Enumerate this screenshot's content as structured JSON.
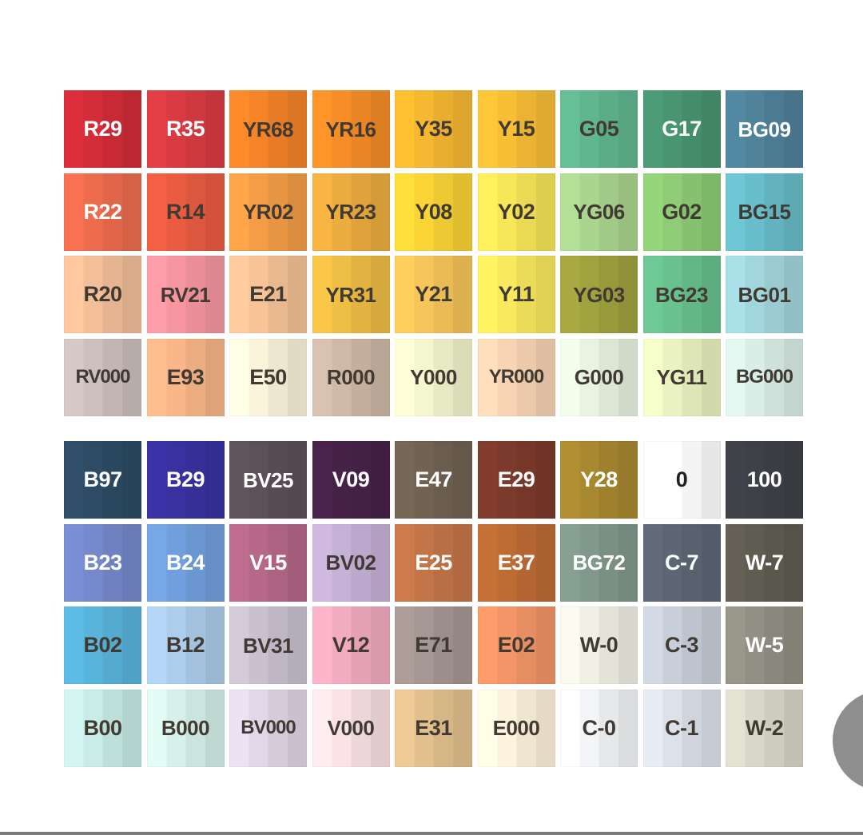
{
  "page": {
    "background": "#ffffff",
    "bottom_line_color": "#7b7b7b"
  },
  "carousel": {
    "next_button_color": "#8e8e8e"
  },
  "chart_data": {
    "type": "table",
    "title": "Marker color swatch chart",
    "columns": 9,
    "text_colors": {
      "light": "#ffffff",
      "dark": "#403a33",
      "black": "#222222"
    },
    "blocks": [
      {
        "name": "warm-greens-block",
        "rows": [
          [
            {
              "label": "R29",
              "color": "#ce2c37",
              "text": "light"
            },
            {
              "label": "R35",
              "color": "#d53a41",
              "text": "light"
            },
            {
              "label": "YR68",
              "color": "#f08127",
              "text": "dark"
            },
            {
              "label": "YR16",
              "color": "#f18a25",
              "text": "dark"
            },
            {
              "label": "Y35",
              "color": "#f1b42f",
              "text": "dark"
            },
            {
              "label": "Y15",
              "color": "#f3ba33",
              "text": "dark"
            },
            {
              "label": "G05",
              "color": "#5eb38c",
              "text": "dark"
            },
            {
              "label": "G17",
              "color": "#47926d",
              "text": "light"
            },
            {
              "label": "BG09",
              "color": "#4e7f97",
              "text": "light"
            }
          ],
          [
            {
              "label": "R22",
              "color": "#e96a4c",
              "text": "light"
            },
            {
              "label": "R14",
              "color": "#e55a40",
              "text": "dark"
            },
            {
              "label": "YR02",
              "color": "#ef9a45",
              "text": "dark"
            },
            {
              "label": "YR23",
              "color": "#e8a93e",
              "text": "dark"
            },
            {
              "label": "Y08",
              "color": "#f6d035",
              "text": "dark"
            },
            {
              "label": "Y02",
              "color": "#f2e156",
              "text": "dark"
            },
            {
              "label": "YG06",
              "color": "#a7d18c",
              "text": "dark"
            },
            {
              "label": "G02",
              "color": "#8bc873",
              "text": "dark"
            },
            {
              "label": "BG15",
              "color": "#66bac6",
              "text": "dark"
            }
          ],
          [
            {
              "label": "R20",
              "color": "#eebb95",
              "text": "dark"
            },
            {
              "label": "RV21",
              "color": "#f2939d",
              "text": "dark"
            },
            {
              "label": "E21",
              "color": "#f2bf94",
              "text": "dark"
            },
            {
              "label": "YR31",
              "color": "#eaba43",
              "text": "dark"
            },
            {
              "label": "Y21",
              "color": "#f2c157",
              "text": "dark"
            },
            {
              "label": "Y11",
              "color": "#f3e45c",
              "text": "dark"
            },
            {
              "label": "YG03",
              "color": "#9d9f3d",
              "text": "dark"
            },
            {
              "label": "BG23",
              "color": "#67bd8b",
              "text": "dark"
            },
            {
              "label": "BG01",
              "color": "#9fd2d9",
              "text": "dark"
            }
          ],
          [
            {
              "label": "RV000",
              "color": "#c9bcba",
              "text": "dark"
            },
            {
              "label": "E93",
              "color": "#f4b285",
              "text": "dark"
            },
            {
              "label": "E50",
              "color": "#f6efd7",
              "text": "dark"
            },
            {
              "label": "R000",
              "color": "#cbb5a5",
              "text": "dark"
            },
            {
              "label": "Y000",
              "color": "#eff1c9",
              "text": "dark"
            },
            {
              "label": "YR000",
              "color": "#f4d0b0",
              "text": "dark"
            },
            {
              "label": "G000",
              "color": "#e3eedd",
              "text": "dark"
            },
            {
              "label": "YG11",
              "color": "#e6edbd",
              "text": "dark"
            },
            {
              "label": "BG000",
              "color": "#d6e9e3",
              "text": "dark"
            }
          ]
        ]
      },
      {
        "name": "blues-grays-block",
        "rows": [
          [
            {
              "label": "B97",
              "color": "#2c4a63",
              "text": "light"
            },
            {
              "label": "B29",
              "color": "#37319e",
              "text": "light"
            },
            {
              "label": "BV25",
              "color": "#5b4f57",
              "text": "light"
            },
            {
              "label": "V09",
              "color": "#452147",
              "text": "light"
            },
            {
              "label": "E47",
              "color": "#6f6050",
              "text": "light"
            },
            {
              "label": "E29",
              "color": "#7a392b",
              "text": "light"
            },
            {
              "label": "Y28",
              "color": "#a5862f",
              "text": "light"
            },
            {
              "label": "0",
              "color": "#fdfdfd",
              "text": "black"
            },
            {
              "label": "100",
              "color": "#3c3f45",
              "text": "light"
            }
          ],
          [
            {
              "label": "B23",
              "color": "#7386c8",
              "text": "light"
            },
            {
              "label": "B24",
              "color": "#6f9cd9",
              "text": "light"
            },
            {
              "label": "V15",
              "color": "#b26685",
              "text": "light"
            },
            {
              "label": "BV02",
              "color": "#c2aed3",
              "text": "dark"
            },
            {
              "label": "E25",
              "color": "#c07347",
              "text": "light"
            },
            {
              "label": "E37",
              "color": "#b96a33",
              "text": "light"
            },
            {
              "label": "BG72",
              "color": "#7e9687",
              "text": "light"
            },
            {
              "label": "C-7",
              "color": "#5b6472",
              "text": "light"
            },
            {
              "label": "W-7",
              "color": "#5d5a50",
              "text": "light"
            }
          ],
          [
            {
              "label": "B02",
              "color": "#57b0d7",
              "text": "dark"
            },
            {
              "label": "B12",
              "color": "#a9c9e7",
              "text": "dark"
            },
            {
              "label": "BV31",
              "color": "#c5bdcc",
              "text": "dark"
            },
            {
              "label": "V12",
              "color": "#eda8bc",
              "text": "dark"
            },
            {
              "label": "E71",
              "color": "#a29490",
              "text": "dark"
            },
            {
              "label": "E02",
              "color": "#ee9264",
              "text": "dark"
            },
            {
              "label": "W-0",
              "color": "#ebebe0",
              "text": "dark"
            },
            {
              "label": "C-3",
              "color": "#c5cbd6",
              "text": "dark"
            },
            {
              "label": "W-5",
              "color": "#8f8c81",
              "text": "light"
            }
          ],
          [
            {
              "label": "B00",
              "color": "#c4e7e2",
              "text": "dark"
            },
            {
              "label": "B000",
              "color": "#d2ece5",
              "text": "dark"
            },
            {
              "label": "BV000",
              "color": "#dcd3e3",
              "text": "dark"
            },
            {
              "label": "V000",
              "color": "#f6dee1",
              "text": "dark"
            },
            {
              "label": "E31",
              "color": "#dfbd8b",
              "text": "dark"
            },
            {
              "label": "E000",
              "color": "#f9eed8",
              "text": "dark"
            },
            {
              "label": "C-0",
              "color": "#eef0f3",
              "text": "dark"
            },
            {
              "label": "C-1",
              "color": "#d8dde5",
              "text": "dark"
            },
            {
              "label": "W-2",
              "color": "#d5d3c5",
              "text": "dark"
            }
          ]
        ]
      }
    ]
  }
}
